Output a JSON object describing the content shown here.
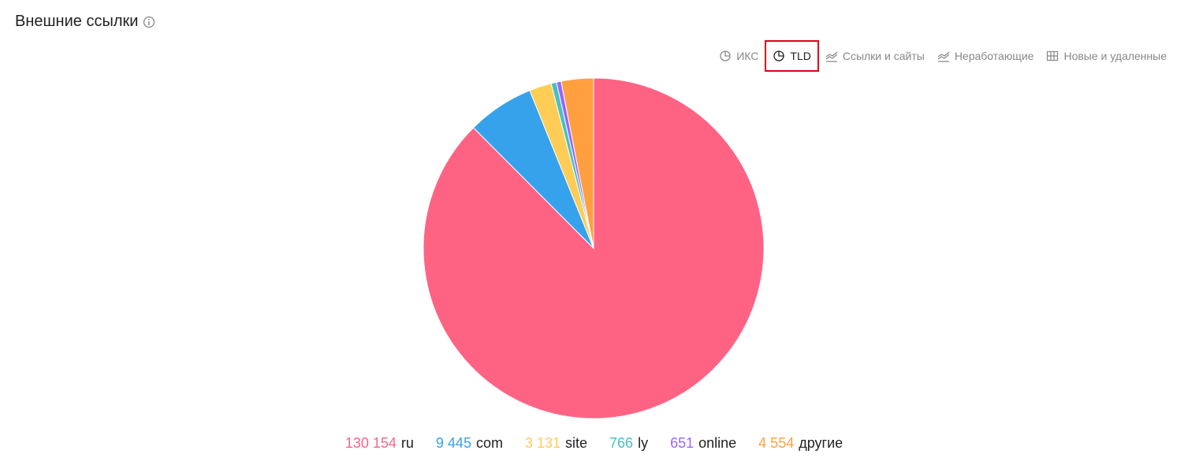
{
  "header": {
    "title": "Внешние ссылки"
  },
  "tabs": [
    "ИКС",
    "TLD",
    "Ссылки и сайты",
    "Неработающие",
    "Новые и удаленные"
  ],
  "chart_data": {
    "type": "pie",
    "categories": [
      "ru",
      "com",
      "site",
      "ly",
      "online",
      "другие"
    ],
    "values": [
      130154,
      9445,
      3131,
      766,
      651,
      4554
    ],
    "value_labels": [
      "130 154",
      "9 445",
      "3 131",
      "766",
      "651",
      "4 554"
    ],
    "colors": [
      "#ff6384",
      "#36a2eb",
      "#ffcd56",
      "#4bc0c0",
      "#9966ff",
      "#ff9f40"
    ]
  }
}
